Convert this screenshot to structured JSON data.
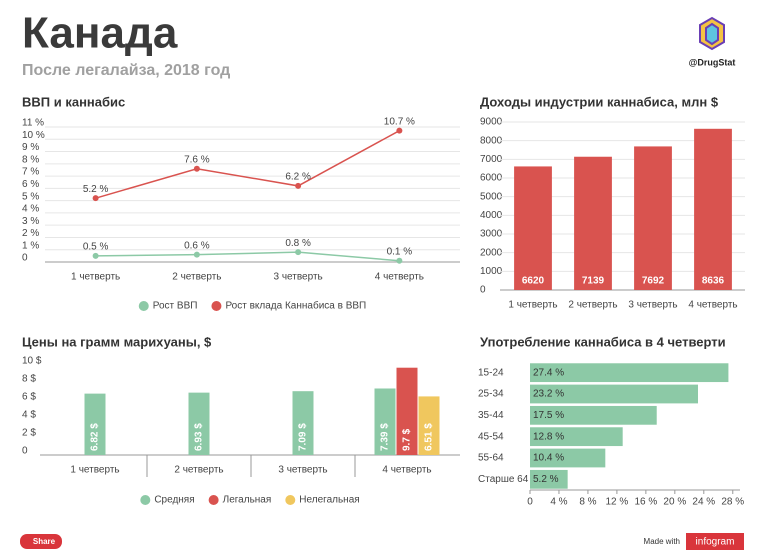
{
  "header": {
    "title": "Канада",
    "subtitle": "После легалайза, 2018 год",
    "handle": "@DrugStat"
  },
  "footer": {
    "share": "Share",
    "made_with": "Made with",
    "brand": "infogram"
  },
  "chart_data": [
    {
      "type": "line",
      "title": "ВВП и каннабис",
      "categories": [
        "1 четверть",
        "2 четверть",
        "3 четверть",
        "4 четверть"
      ],
      "series": [
        {
          "name": "Рост ВВП",
          "color": "#8cc9a6",
          "values": [
            0.5,
            0.6,
            0.8,
            0.1
          ],
          "value_labels": [
            "0.5 %",
            "0.6 %",
            "0.8 %",
            "0.1 %"
          ]
        },
        {
          "name": "Рост вклада Каннабиса в ВВП",
          "color": "#d9534f",
          "values": [
            5.2,
            7.6,
            6.2,
            10.7
          ],
          "value_labels": [
            "5.2 %",
            "7.6 %",
            "6.2 %",
            "10.7 %"
          ]
        }
      ],
      "ylim": [
        0,
        11
      ],
      "yticks": [
        0,
        {
          "value": 1,
          "label": "1 %"
        },
        {
          "value": 2,
          "label": "2 %"
        },
        {
          "value": 3,
          "label": "3 %"
        },
        {
          "value": 4,
          "label": "4 %"
        },
        {
          "value": 5,
          "label": "5 %"
        },
        {
          "value": 6,
          "label": "6 %"
        },
        {
          "value": 7,
          "label": "7 %"
        },
        {
          "value": 8,
          "label": "8 %"
        },
        {
          "value": 9,
          "label": "9 %"
        },
        {
          "value": 10,
          "label": "10 %"
        },
        {
          "value": 11,
          "label": "11 %"
        }
      ],
      "grid": true
    },
    {
      "type": "bar",
      "title": "Доходы индустрии каннабиса, млн $",
      "categories": [
        "1 четверть",
        "2 четверть",
        "3 четверть",
        "4 четверть"
      ],
      "values": [
        6620,
        7139,
        7692,
        8636
      ],
      "color": "#d9534f",
      "ylim": [
        0,
        9000
      ],
      "yticks": [
        0,
        1000,
        2000,
        3000,
        4000,
        5000,
        6000,
        7000,
        8000,
        9000
      ],
      "grid": true
    },
    {
      "type": "bar",
      "title": "Цены на грамм марихуаны, $",
      "categories": [
        "1 четверть",
        "2 четверть",
        "3 четверть",
        "4 четверть"
      ],
      "series": [
        {
          "name": "Средняя",
          "color": "#8cc9a6",
          "values": [
            6.82,
            6.93,
            7.09,
            7.39
          ],
          "value_labels": [
            "6.82 $",
            "6.93 $",
            "7.09 $",
            "7.39 $"
          ]
        },
        {
          "name": "Легальная",
          "color": "#d9534f",
          "values": [
            null,
            null,
            null,
            9.7
          ],
          "value_labels": [
            null,
            null,
            null,
            "9.7 $"
          ]
        },
        {
          "name": "Нелегальная",
          "color": "#f0c75e",
          "values": [
            null,
            null,
            null,
            6.51
          ],
          "value_labels": [
            null,
            null,
            null,
            "6.51 $"
          ]
        }
      ],
      "ylim": [
        0,
        10
      ],
      "yticks": [
        0,
        {
          "value": 2,
          "label": "2 $"
        },
        {
          "value": 4,
          "label": "4 $"
        },
        {
          "value": 6,
          "label": "6 $"
        },
        {
          "value": 8,
          "label": "8 $"
        },
        {
          "value": 10,
          "label": "10 $"
        }
      ],
      "grid": false
    },
    {
      "type": "barh",
      "title": "Употребление каннабиса в 4 четверти",
      "categories": [
        "15-24",
        "25-34",
        "35-44",
        "45-54",
        "55-64",
        "Старше 64"
      ],
      "values": [
        27.4,
        23.2,
        17.5,
        12.8,
        10.4,
        5.2
      ],
      "value_labels": [
        "27.4 %",
        "23.2 %",
        "17.5 %",
        "12.8 %",
        "10.4 %",
        "5.2 %"
      ],
      "color": "#8cc9a6",
      "xlim": [
        0,
        29
      ],
      "xticks": [
        0,
        {
          "value": 4,
          "label": "4 %"
        },
        {
          "value": 8,
          "label": "8 %"
        },
        {
          "value": 12,
          "label": "12 %"
        },
        {
          "value": 16,
          "label": "16 %"
        },
        {
          "value": 20,
          "label": "20 %"
        },
        {
          "value": 24,
          "label": "24 %"
        },
        {
          "value": 28,
          "label": "28 %"
        }
      ],
      "grid": false
    }
  ]
}
